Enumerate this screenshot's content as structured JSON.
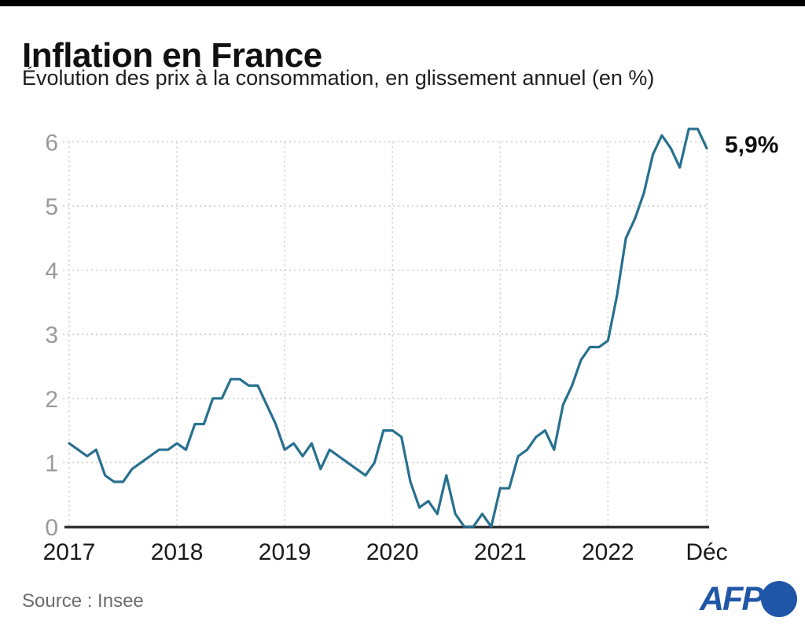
{
  "header": {
    "title": "Inflation en France",
    "subtitle": "Évolution des prix à la consommation, en glissement annuel (en %)"
  },
  "chart_data": {
    "type": "line",
    "title": "Inflation en France",
    "subtitle": "Évolution des prix à la consommation, en glissement annuel (en %)",
    "frequency": "monthly",
    "x_range": [
      "Jan 2017",
      "Déc 2022"
    ],
    "values": [
      1.3,
      1.2,
      1.1,
      1.2,
      0.8,
      0.7,
      0.7,
      0.9,
      1.0,
      1.1,
      1.2,
      1.2,
      1.3,
      1.2,
      1.6,
      1.6,
      2.0,
      2.0,
      2.3,
      2.3,
      2.2,
      2.2,
      1.9,
      1.6,
      1.2,
      1.3,
      1.1,
      1.3,
      0.9,
      1.2,
      1.1,
      1.0,
      0.9,
      0.8,
      1.0,
      1.5,
      1.5,
      1.4,
      0.7,
      0.3,
      0.4,
      0.2,
      0.8,
      0.2,
      0.0,
      0.0,
      0.2,
      0.0,
      0.6,
      0.6,
      1.1,
      1.2,
      1.4,
      1.5,
      1.2,
      1.9,
      2.2,
      2.6,
      2.8,
      2.8,
      2.9,
      3.6,
      4.5,
      4.8,
      5.2,
      5.8,
      6.1,
      5.9,
      5.6,
      6.2,
      6.2,
      5.9
    ],
    "yticks": [
      0,
      1,
      2,
      3,
      4,
      5,
      6
    ],
    "ylim": [
      0,
      6.4
    ],
    "xticks": [
      {
        "label": "2017",
        "month_index": 0
      },
      {
        "label": "2018",
        "month_index": 12
      },
      {
        "label": "2019",
        "month_index": 24
      },
      {
        "label": "2020",
        "month_index": 36
      },
      {
        "label": "2021",
        "month_index": 48
      },
      {
        "label": "2022",
        "month_index": 60
      },
      {
        "label": "Déc",
        "month_index": 71
      }
    ],
    "end_label": "5,9%",
    "line_color": "#28708f",
    "grid_color": "#cccccc",
    "axis_color": "#333333",
    "grid": "dotted",
    "legend": "none"
  },
  "footer": {
    "source": "Source : Insee",
    "logo_text": "AFP",
    "logo_color": "#2056a7"
  }
}
